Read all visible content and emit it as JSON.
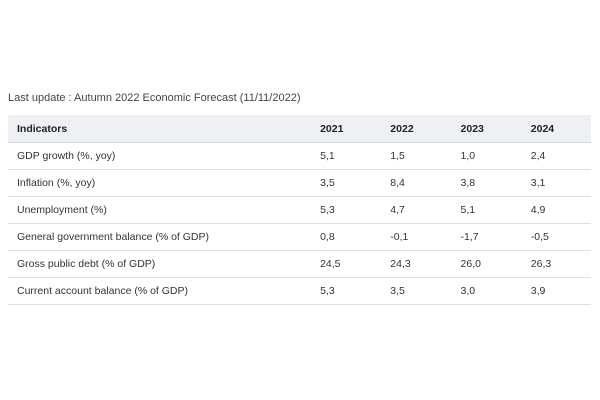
{
  "update_note": "Last update : Autumn 2022 Economic Forecast (11/11/2022)",
  "table": {
    "headers": [
      "Indicators",
      "2021",
      "2022",
      "2023",
      "2024"
    ],
    "rows": [
      [
        "GDP growth (%, yoy)",
        "5,1",
        "1,5",
        "1,0",
        "2,4"
      ],
      [
        "Inflation (%, yoy)",
        "3,5",
        "8,4",
        "3,8",
        "3,1"
      ],
      [
        "Unemployment (%)",
        "5,3",
        "4,7",
        "5,1",
        "4,9"
      ],
      [
        "General government balance (% of GDP)",
        "0,8",
        "-0,1",
        "-1,7",
        "-0,5"
      ],
      [
        "Gross public debt (% of GDP)",
        "24,5",
        "24,3",
        "26,0",
        "26,3"
      ],
      [
        "Current account balance (% of GDP)",
        "5,3",
        "3,5",
        "3,0",
        "3,9"
      ]
    ]
  }
}
